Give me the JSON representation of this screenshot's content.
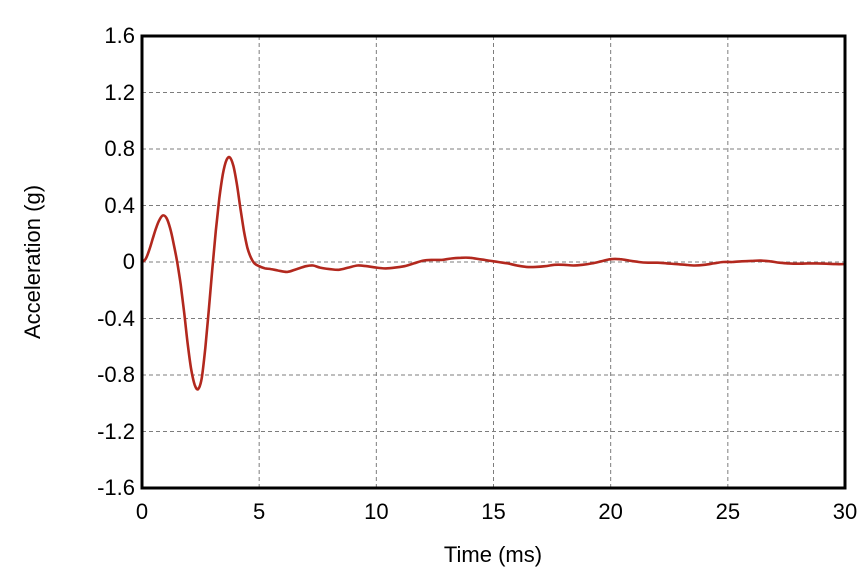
{
  "chart_data": {
    "type": "line",
    "title": "",
    "xlabel": "Time (ms)",
    "ylabel": "Acceleration (g)",
    "xlim": [
      0,
      30
    ],
    "ylim": [
      -1.6,
      1.6
    ],
    "x_ticks": [
      0,
      5,
      10,
      15,
      20,
      25,
      30
    ],
    "x_tick_labels": [
      "0",
      "5",
      "10",
      "15",
      "20",
      "25",
      "30"
    ],
    "y_ticks": [
      1.6,
      1.2,
      0.8,
      0.4,
      0,
      -0.4,
      -0.8,
      -1.2,
      -1.6
    ],
    "y_tick_labels": [
      "1.6",
      "1.2",
      "0.8",
      "0.4",
      "0",
      "-0.4",
      "-0.8",
      "-1.2",
      "-1.6"
    ],
    "grid": true,
    "legend": "none",
    "series": [
      {
        "name": "acceleration",
        "color": "#b2281e",
        "x": [
          0,
          0.15,
          0.3,
          0.45,
          0.6,
          0.75,
          0.9,
          1.05,
          1.2,
          1.35,
          1.5,
          1.65,
          1.8,
          1.95,
          2.1,
          2.25,
          2.4,
          2.55,
          2.7,
          2.85,
          3.0,
          3.15,
          3.3,
          3.45,
          3.6,
          3.75,
          3.9,
          4.05,
          4.2,
          4.35,
          4.5,
          4.65,
          4.8,
          5.0,
          5.25,
          5.5,
          5.8,
          6.2,
          6.6,
          7.0,
          7.3,
          7.6,
          8.0,
          8.4,
          8.8,
          9.2,
          9.6,
          10.0,
          10.4,
          10.8,
          11.2,
          11.6,
          12.0,
          12.4,
          12.8,
          13.2,
          13.6,
          14.0,
          14.4,
          14.8,
          15.2,
          15.6,
          16.0,
          16.4,
          16.8,
          17.2,
          17.6,
          18.0,
          18.4,
          18.8,
          19.2,
          19.6,
          20.0,
          20.4,
          20.8,
          21.2,
          21.6,
          22.0,
          22.4,
          22.8,
          23.2,
          23.6,
          24.0,
          24.4,
          24.8,
          25.2,
          25.6,
          26.0,
          26.4,
          26.8,
          27.2,
          27.6,
          28.0,
          28.4,
          28.8,
          29.2,
          29.6,
          30.0
        ],
        "y": [
          0,
          0.02,
          0.08,
          0.16,
          0.24,
          0.3,
          0.33,
          0.31,
          0.24,
          0.13,
          0.0,
          -0.16,
          -0.36,
          -0.58,
          -0.76,
          -0.87,
          -0.9,
          -0.82,
          -0.61,
          -0.34,
          -0.05,
          0.22,
          0.45,
          0.62,
          0.72,
          0.74,
          0.68,
          0.55,
          0.38,
          0.22,
          0.1,
          0.03,
          -0.01,
          -0.03,
          -0.045,
          -0.05,
          -0.06,
          -0.07,
          -0.05,
          -0.03,
          -0.025,
          -0.04,
          -0.05,
          -0.055,
          -0.04,
          -0.025,
          -0.03,
          -0.04,
          -0.045,
          -0.04,
          -0.03,
          -0.01,
          0.01,
          0.015,
          0.015,
          0.025,
          0.03,
          0.03,
          0.02,
          0.01,
          0.0,
          -0.01,
          -0.025,
          -0.035,
          -0.035,
          -0.03,
          -0.02,
          -0.02,
          -0.025,
          -0.02,
          -0.01,
          0.005,
          0.02,
          0.02,
          0.01,
          0.0,
          -0.005,
          -0.005,
          -0.01,
          -0.015,
          -0.02,
          -0.025,
          -0.02,
          -0.01,
          0.0,
          0.0,
          0.005,
          0.008,
          0.01,
          0.005,
          -0.005,
          -0.01,
          -0.012,
          -0.01,
          -0.01,
          -0.012,
          -0.015,
          -0.015
        ]
      }
    ]
  },
  "colors": {
    "line": "#b2281e",
    "grid": "#7d7d7d",
    "frame": "#000000",
    "background": "#ffffff",
    "text": "#000000"
  }
}
